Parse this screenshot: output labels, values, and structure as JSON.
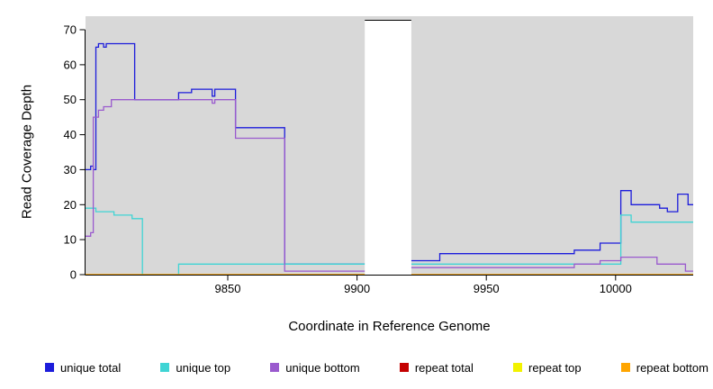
{
  "chart_data": {
    "type": "line",
    "step": "after",
    "title": "",
    "xlabel": "Coordinate in Reference Genome",
    "ylabel": "Read Coverage Depth",
    "xlim": [
      9795,
      10030
    ],
    "ylim": [
      0,
      70
    ],
    "x_ticks": [
      9850,
      9900,
      9950,
      10000
    ],
    "y_ticks": [
      0,
      10,
      20,
      30,
      40,
      50,
      60,
      70
    ],
    "grid": false,
    "legend_position": "bottom",
    "panel_color": "#d8d8d8",
    "axis_color": "#000000",
    "masked_region": {
      "x_start": 9903,
      "x_end": 9921,
      "color": "#ffffff"
    },
    "series": [
      {
        "name": "unique total",
        "color": "#1c1cdb",
        "points": [
          [
            9795,
            30
          ],
          [
            9797,
            31
          ],
          [
            9798,
            30
          ],
          [
            9799,
            65
          ],
          [
            9800,
            66
          ],
          [
            9802,
            65
          ],
          [
            9803,
            66
          ],
          [
            9814,
            50
          ],
          [
            9831,
            52
          ],
          [
            9836,
            53
          ],
          [
            9844,
            51
          ],
          [
            9845,
            53
          ],
          [
            9853,
            42
          ],
          [
            9872,
            3
          ],
          [
            9912,
            4
          ],
          [
            9932,
            6
          ],
          [
            9984,
            7
          ],
          [
            9994,
            9
          ],
          [
            10002,
            24
          ],
          [
            10006,
            20
          ],
          [
            10017,
            19
          ],
          [
            10020,
            18
          ],
          [
            10024,
            23
          ],
          [
            10028,
            20
          ]
        ]
      },
      {
        "name": "unique top",
        "color": "#3fd4d4",
        "points": [
          [
            9795,
            19
          ],
          [
            9799,
            18
          ],
          [
            9806,
            17
          ],
          [
            9813,
            16
          ],
          [
            9817,
            0
          ],
          [
            9831,
            3
          ],
          [
            10002,
            17
          ],
          [
            10006,
            15
          ]
        ]
      },
      {
        "name": "unique bottom",
        "color": "#9a5ace",
        "points": [
          [
            9795,
            11
          ],
          [
            9797,
            12
          ],
          [
            9798,
            45
          ],
          [
            9800,
            47
          ],
          [
            9802,
            48
          ],
          [
            9805,
            50
          ],
          [
            9844,
            49
          ],
          [
            9845,
            50
          ],
          [
            9853,
            39
          ],
          [
            9872,
            1
          ],
          [
            9912,
            2
          ],
          [
            9984,
            3
          ],
          [
            9994,
            4
          ],
          [
            10002,
            5
          ],
          [
            10016,
            3
          ],
          [
            10027,
            1
          ]
        ]
      },
      {
        "name": "repeat total",
        "color": "#c40000",
        "points": [
          [
            9795,
            0
          ]
        ]
      },
      {
        "name": "repeat top",
        "color": "#f2f200",
        "points": [
          [
            9795,
            0
          ]
        ]
      },
      {
        "name": "repeat bottom",
        "color": "#ffa500",
        "points": [
          [
            9795,
            0
          ]
        ]
      }
    ]
  }
}
